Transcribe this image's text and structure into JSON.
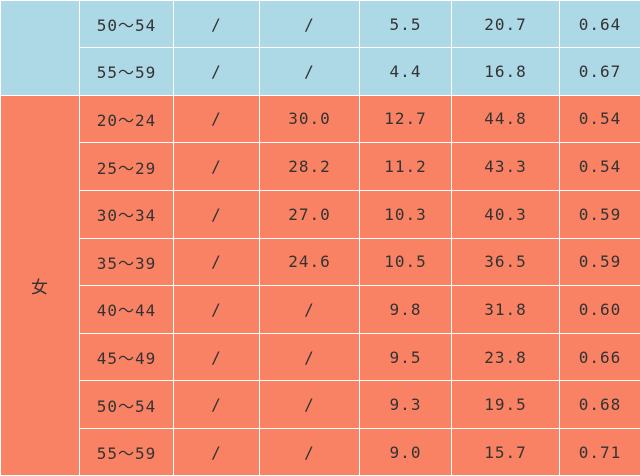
{
  "table": {
    "male_rows": [
      {
        "age": "50～54",
        "c1": "/",
        "c2": "/",
        "c3": "5.5",
        "c4": "20.7",
        "c5": "0.64"
      },
      {
        "age": "55～59",
        "c1": "/",
        "c2": "/",
        "c3": "4.4",
        "c4": "16.8",
        "c5": "0.67"
      }
    ],
    "female_label": "女",
    "female_rows": [
      {
        "age": "20～24",
        "c1": "/",
        "c2": "30.0",
        "c3": "12.7",
        "c4": "44.8",
        "c5": "0.54"
      },
      {
        "age": "25～29",
        "c1": "/",
        "c2": "28.2",
        "c3": "11.2",
        "c4": "43.3",
        "c5": "0.54"
      },
      {
        "age": "30～34",
        "c1": "/",
        "c2": "27.0",
        "c3": "10.3",
        "c4": "40.3",
        "c5": "0.59"
      },
      {
        "age": "35～39",
        "c1": "/",
        "c2": "24.6",
        "c3": "10.5",
        "c4": "36.5",
        "c5": "0.59"
      },
      {
        "age": "40～44",
        "c1": "/",
        "c2": "/",
        "c3": "9.8",
        "c4": "31.8",
        "c5": "0.60"
      },
      {
        "age": "45～49",
        "c1": "/",
        "c2": "/",
        "c3": "9.5",
        "c4": "23.8",
        "c5": "0.66"
      },
      {
        "age": "50～54",
        "c1": "/",
        "c2": "/",
        "c3": "9.3",
        "c4": "19.5",
        "c5": "0.68"
      },
      {
        "age": "55～59",
        "c1": "/",
        "c2": "/",
        "c3": "9.0",
        "c4": "15.7",
        "c5": "0.71"
      }
    ],
    "colors": {
      "male_bg": "#add8e6",
      "female_bg": "#fa8264",
      "grid": "#ffffff",
      "text": "#333333"
    }
  }
}
